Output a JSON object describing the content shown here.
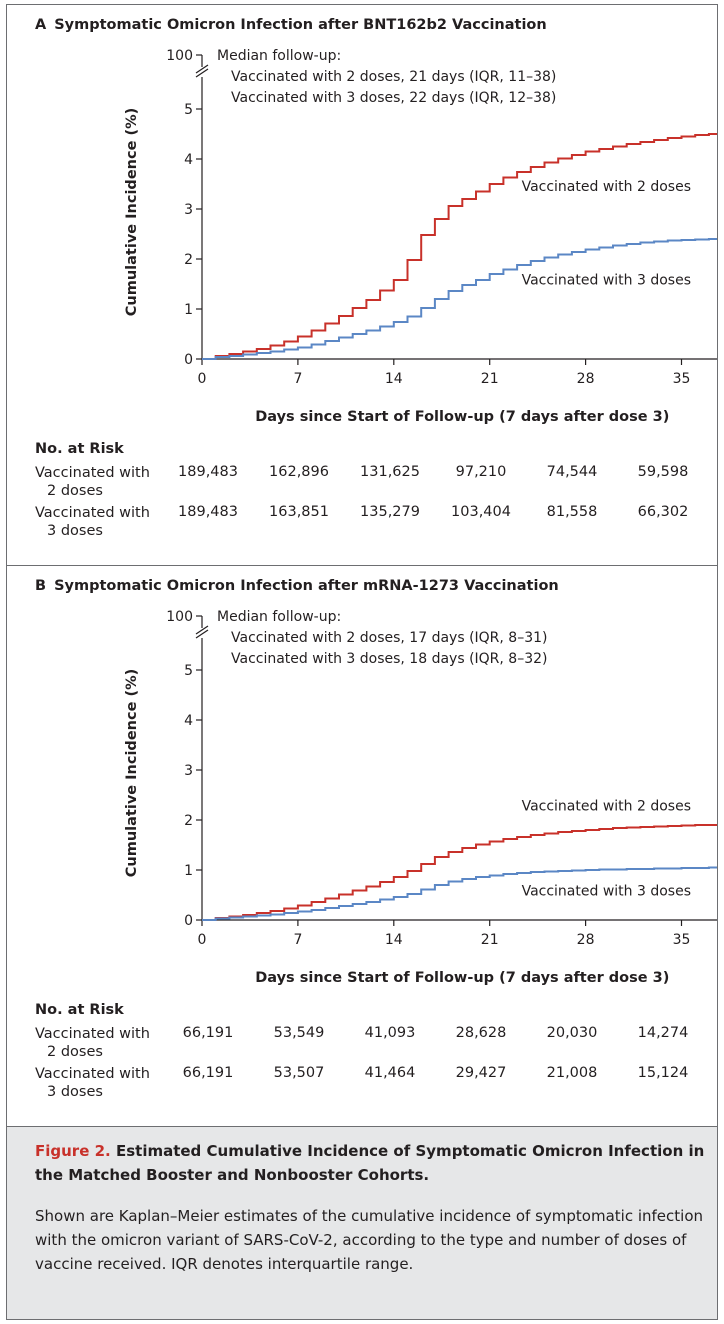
{
  "figure": {
    "label": "Figure 2.",
    "title": "Estimated Cumulative Incidence of Symptomatic Omicron Infection in the Matched Booster and Nonbooster Cohorts.",
    "legend_text": "Shown are Kaplan–Meier estimates of the cumulative incidence of symptomatic infection with the omicron variant of SARS-CoV-2, according to the type and number of doses of vaccine received. IQR denotes interquartile range."
  },
  "colors": {
    "two_doses": "#c8312a",
    "three_doses": "#5b87c5",
    "axis": "#231f20",
    "caption_bg": "#e6e7e8",
    "figure_label": "#c8312a"
  },
  "panels": [
    {
      "letter": "A",
      "title": "Symptomatic Omicron Infection after BNT162b2 Vaccination",
      "followup": [
        "Median follow-up:",
        "Vaccinated with 2 doses, 21 days (IQR, 11–38)",
        "Vaccinated with 3 doses, 22 days (IQR, 12–38)"
      ],
      "risk_header": "No. at Risk",
      "risk_rows": [
        {
          "label_line1": "Vaccinated with",
          "label_line2": "2 doses",
          "values": [
            "189,483",
            "162,896",
            "131,625",
            "97,210",
            "74,544",
            "59,598"
          ]
        },
        {
          "label_line1": "Vaccinated with",
          "label_line2": "3 doses",
          "values": [
            "189,483",
            "163,851",
            "135,279",
            "103,404",
            "81,558",
            "66,302"
          ]
        }
      ]
    },
    {
      "letter": "B",
      "title": "Symptomatic Omicron Infection after mRNA-1273 Vaccination",
      "followup": [
        "Median follow-up:",
        "Vaccinated with 2 doses, 17 days (IQR, 8–31)",
        "Vaccinated with 3 doses, 18 days (IQR, 8–32)"
      ],
      "risk_header": "No. at Risk",
      "risk_rows": [
        {
          "label_line1": "Vaccinated with",
          "label_line2": "2 doses",
          "values": [
            "66,191",
            "53,549",
            "41,093",
            "28,628",
            "20,030",
            "14,274"
          ]
        },
        {
          "label_line1": "Vaccinated with",
          "label_line2": "3 doses",
          "values": [
            "66,191",
            "53,507",
            "41,464",
            "29,427",
            "21,008",
            "15,124"
          ]
        }
      ]
    }
  ],
  "chart_data": [
    {
      "type": "line",
      "title": "Symptomatic Omicron Infection after BNT162b2 Vaccination",
      "xlabel": "Days since Start of Follow-up (7 days after dose 3)",
      "ylabel": "Cumulative Incidence (%)",
      "xticks": [
        0,
        7,
        14,
        21,
        28,
        35
      ],
      "yticks": [
        0,
        1,
        2,
        3,
        4,
        5
      ],
      "ybreak_label": "100",
      "xlim": [
        0,
        38
      ],
      "ylim": [
        0,
        5.5
      ],
      "step": true,
      "series": [
        {
          "name": "Vaccinated with 2 doses",
          "x": [
            1,
            2,
            3,
            4,
            5,
            6,
            7,
            8,
            9,
            10,
            11,
            12,
            13,
            14,
            15,
            16,
            17,
            18,
            19,
            20,
            21,
            22,
            23,
            24,
            25,
            26,
            27,
            28,
            29,
            30,
            31,
            32,
            33,
            34,
            35,
            36,
            37,
            38
          ],
          "y": [
            0.06,
            0.1,
            0.15,
            0.2,
            0.27,
            0.35,
            0.45,
            0.57,
            0.71,
            0.86,
            1.02,
            1.18,
            1.37,
            1.58,
            1.98,
            2.48,
            2.8,
            3.06,
            3.2,
            3.35,
            3.5,
            3.63,
            3.74,
            3.84,
            3.93,
            4.01,
            4.08,
            4.15,
            4.2,
            4.25,
            4.3,
            4.34,
            4.38,
            4.42,
            4.45,
            4.48,
            4.5,
            4.52
          ]
        },
        {
          "name": "Vaccinated with 3 doses",
          "x": [
            1,
            2,
            3,
            4,
            5,
            6,
            7,
            8,
            9,
            10,
            11,
            12,
            13,
            14,
            15,
            16,
            17,
            18,
            19,
            20,
            21,
            22,
            23,
            24,
            25,
            26,
            27,
            28,
            29,
            30,
            31,
            32,
            33,
            34,
            35,
            36,
            37,
            38
          ],
          "y": [
            0.04,
            0.06,
            0.09,
            0.12,
            0.15,
            0.19,
            0.23,
            0.29,
            0.36,
            0.43,
            0.5,
            0.57,
            0.65,
            0.74,
            0.85,
            1.02,
            1.2,
            1.36,
            1.48,
            1.58,
            1.7,
            1.79,
            1.88,
            1.96,
            2.03,
            2.09,
            2.14,
            2.19,
            2.23,
            2.27,
            2.3,
            2.33,
            2.35,
            2.37,
            2.38,
            2.39,
            2.4,
            2.41
          ]
        }
      ]
    },
    {
      "type": "line",
      "title": "Symptomatic Omicron Infection after mRNA-1273 Vaccination",
      "xlabel": "Days since Start of Follow-up (7 days after dose 3)",
      "ylabel": "Cumulative Incidence (%)",
      "xticks": [
        0,
        7,
        14,
        21,
        28,
        35
      ],
      "yticks": [
        0,
        1,
        2,
        3,
        4,
        5
      ],
      "ybreak_label": "100",
      "xlim": [
        0,
        38
      ],
      "ylim": [
        0,
        5.5
      ],
      "step": true,
      "series": [
        {
          "name": "Vaccinated with 2 doses",
          "x": [
            1,
            2,
            3,
            4,
            5,
            6,
            7,
            8,
            9,
            10,
            11,
            12,
            13,
            14,
            15,
            16,
            17,
            18,
            19,
            20,
            21,
            22,
            23,
            24,
            25,
            26,
            27,
            28,
            29,
            30,
            31,
            32,
            33,
            34,
            35,
            36,
            37,
            38
          ],
          "y": [
            0.04,
            0.07,
            0.1,
            0.14,
            0.18,
            0.23,
            0.29,
            0.36,
            0.43,
            0.51,
            0.59,
            0.67,
            0.76,
            0.86,
            0.98,
            1.12,
            1.26,
            1.36,
            1.44,
            1.51,
            1.57,
            1.62,
            1.66,
            1.7,
            1.73,
            1.76,
            1.78,
            1.8,
            1.82,
            1.84,
            1.85,
            1.86,
            1.87,
            1.88,
            1.89,
            1.9,
            1.9,
            1.91
          ]
        },
        {
          "name": "Vaccinated with 3 doses",
          "x": [
            1,
            2,
            3,
            4,
            5,
            6,
            7,
            8,
            9,
            10,
            11,
            12,
            13,
            14,
            15,
            16,
            17,
            18,
            19,
            20,
            21,
            22,
            23,
            24,
            25,
            26,
            27,
            28,
            29,
            30,
            31,
            32,
            33,
            34,
            35,
            36,
            37,
            38
          ],
          "y": [
            0.03,
            0.05,
            0.07,
            0.09,
            0.11,
            0.14,
            0.17,
            0.2,
            0.24,
            0.28,
            0.32,
            0.36,
            0.41,
            0.46,
            0.52,
            0.61,
            0.7,
            0.77,
            0.82,
            0.86,
            0.89,
            0.92,
            0.94,
            0.96,
            0.97,
            0.98,
            0.99,
            1,
            1.01,
            1.01,
            1.02,
            1.02,
            1.03,
            1.03,
            1.04,
            1.04,
            1.05,
            1.05
          ]
        }
      ]
    }
  ]
}
